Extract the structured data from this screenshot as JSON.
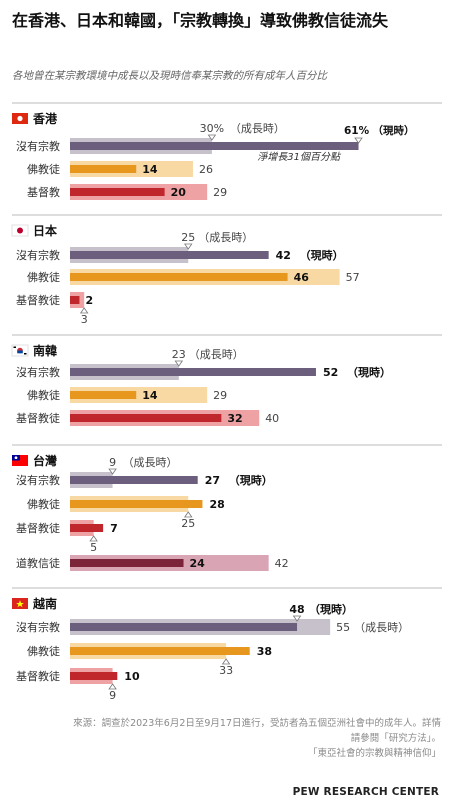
{
  "title": "在香港、日本和韓國，「宗教轉換」導致佛教信徒流失",
  "subtitle": "各地曾在某宗教環境中成長以及現時信奉某宗教的所有成年人百分比",
  "source": {
    "line1": "來源：調查於2023年6月2日至9月17日進行，受訪者為五個亞洲社會中的成年人。詳情",
    "line2": "請參閱「研究方法」。",
    "line3": "「東亞社會的宗教與精神信仰」"
  },
  "brand": "PEW RESEARCH CENTER",
  "labels": {
    "raised": "（成長時）",
    "current": "（現時）",
    "hk_annotation": "淨增長31個百分點"
  },
  "colors": {
    "none_current": "#6b5f7d",
    "none_raised": "#c7c1cc",
    "buddhist_current": "#e8971e",
    "buddhist_raised": "#f8d9a4",
    "christian_current": "#c0272d",
    "christian_raised": "#eea2a4",
    "taoist_current": "#7a2339",
    "taoist_raised": "#d9a4b4"
  },
  "chart_data": {
    "type": "bar",
    "description_units": "percent of adults",
    "series_names": [
      "現時",
      "成長時"
    ],
    "groups": [
      {
        "name": "香港",
        "flag": "hk",
        "rows": [
          {
            "label": "沒有宗教",
            "kind": "none",
            "current": 61,
            "raised": 30
          },
          {
            "label": "佛教徒",
            "kind": "buddhist",
            "current": 14,
            "raised": 26
          },
          {
            "label": "基督教",
            "kind": "christian",
            "current": 20,
            "raised": 29
          }
        ]
      },
      {
        "name": "日本",
        "flag": "jp",
        "rows": [
          {
            "label": "沒有宗教",
            "kind": "none",
            "current": 42,
            "raised": 25
          },
          {
            "label": "佛教徒",
            "kind": "buddhist",
            "current": 46,
            "raised": 57
          },
          {
            "label": "基督教徒",
            "kind": "christian",
            "current": 2,
            "raised": 3
          }
        ]
      },
      {
        "name": "南韓",
        "flag": "kr",
        "rows": [
          {
            "label": "沒有宗教",
            "kind": "none",
            "current": 52,
            "raised": 23
          },
          {
            "label": "佛教徒",
            "kind": "buddhist",
            "current": 14,
            "raised": 29
          },
          {
            "label": "基督教徒",
            "kind": "christian",
            "current": 32,
            "raised": 40
          }
        ]
      },
      {
        "name": "台灣",
        "flag": "tw",
        "rows": [
          {
            "label": "沒有宗教",
            "kind": "none",
            "current": 27,
            "raised": 9
          },
          {
            "label": "佛教徒",
            "kind": "buddhist",
            "current": 28,
            "raised": 25
          },
          {
            "label": "基督教徒",
            "kind": "christian",
            "current": 7,
            "raised": 5
          },
          {
            "label": "道教信徒",
            "kind": "taoist",
            "current": 24,
            "raised": 42
          }
        ]
      },
      {
        "name": "越南",
        "flag": "vn",
        "rows": [
          {
            "label": "沒有宗教",
            "kind": "none",
            "current": 48,
            "raised": 55
          },
          {
            "label": "佛教徒",
            "kind": "buddhist",
            "current": 38,
            "raised": 33
          },
          {
            "label": "基督教徒",
            "kind": "christian",
            "current": 10,
            "raised": 9
          }
        ]
      }
    ]
  }
}
